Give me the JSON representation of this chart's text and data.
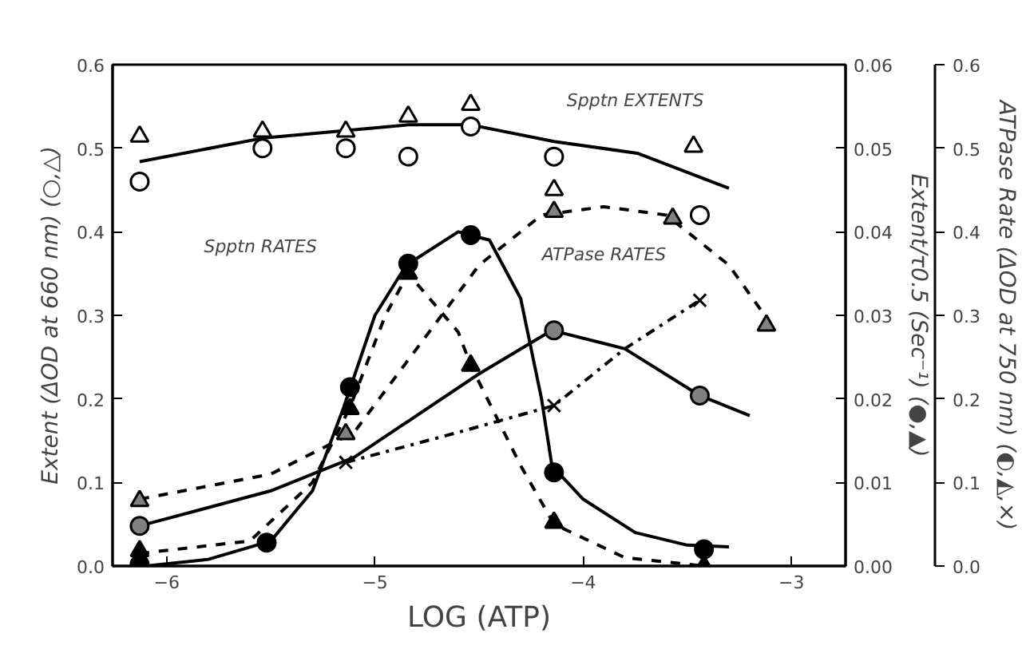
{
  "chart_data": {
    "type": "scatter",
    "xlabel": "LOG (ATP)",
    "ylabel": "Extent (ΔOD at 660 nm) (○,△)",
    "y2label": "Extent/τ0.5 (Sec⁻¹) (●,▲)",
    "y3label": "ATPase Rate (ΔOD at 750 nm) (◐,◭,×)",
    "xlim": [
      -6.26,
      -2.74
    ],
    "xticks": [
      {
        "value": -6,
        "label": "−6"
      },
      {
        "value": -5,
        "label": "−5"
      },
      {
        "value": -4,
        "label": "−4"
      },
      {
        "value": -3,
        "label": "−3"
      }
    ],
    "ylim": [
      0,
      0.6
    ],
    "yticks": [
      {
        "value": 0,
        "label": "0.0"
      },
      0.1,
      0.2,
      0.3,
      0.4,
      0.5,
      0.6
    ],
    "y2lim": [
      0,
      0.06
    ],
    "y2ticks": [
      {
        "value": 0,
        "label": "0.00"
      },
      0.01,
      0.02,
      0.03,
      0.04,
      0.05,
      0.06
    ],
    "y3lim": [
      0,
      0.6
    ],
    "y3ticks": [
      {
        "value": 0,
        "label": "0.0"
      },
      0.1,
      0.2,
      0.3,
      0.4,
      0.5,
      0.6
    ],
    "grid": false,
    "annotations": [
      "Spptn EXTENTS",
      "Spptn RATES",
      "ATPase RATES"
    ],
    "series": [
      {
        "type": "line",
        "axis": "y",
        "color": "#000000",
        "line_style": "solid",
        "x": [
          -6.13,
          -5.54,
          -4.84,
          -4.54,
          -4.14,
          -3.74,
          -3.3
        ],
        "values": [
          0.484,
          0.512,
          0.528,
          0.528,
          0.508,
          0.494,
          0.452
        ]
      },
      {
        "axis": "y",
        "color": "#ffffff",
        "marker": "circle",
        "x": [
          -6.13,
          -5.54,
          -5.14,
          -4.84,
          -4.54,
          -4.14,
          -3.44
        ],
        "values": [
          0.46,
          0.5,
          0.5,
          0.49,
          0.526,
          0.49,
          0.42
        ]
      },
      {
        "axis": "y",
        "color": "#ffffff",
        "marker": "triangle",
        "x": [
          -6.13,
          -5.54,
          -5.14,
          -4.84,
          -4.54,
          -4.14,
          -3.47
        ],
        "values": [
          0.514,
          0.52,
          0.52,
          0.538,
          0.552,
          0.45,
          0.502
        ]
      },
      {
        "type": "line",
        "axis": "y2",
        "color": "#000000",
        "line_style": "solid",
        "x": [
          -6.1,
          -5.8,
          -5.5,
          -5.3,
          -5.15,
          -5.0,
          -4.85,
          -4.6,
          -4.45,
          -4.3,
          -4.2,
          -4.15,
          -4.0,
          -3.75,
          -3.5,
          -3.3
        ],
        "values": [
          0.0,
          0.0008,
          0.003,
          0.009,
          0.019,
          0.03,
          0.036,
          0.04,
          0.039,
          0.032,
          0.02,
          0.012,
          0.008,
          0.004,
          0.0025,
          0.0023
        ]
      },
      {
        "axis": "y2",
        "color": "#000000",
        "marker": "circle",
        "x": [
          -6.13,
          -5.52,
          -5.12,
          -4.84,
          -4.54,
          -4.14,
          -3.42
        ],
        "values": [
          0.0002,
          0.0028,
          0.0214,
          0.0362,
          0.0396,
          0.0112,
          0.002
        ]
      },
      {
        "type": "line",
        "axis": "y2",
        "color": "#000000",
        "line_style": "dashed",
        "x": [
          -6.13,
          -5.6,
          -5.3,
          -5.12,
          -4.95,
          -4.84,
          -4.6,
          -4.54,
          -4.3,
          -4.14,
          -3.8,
          -3.42
        ],
        "values": [
          0.0015,
          0.003,
          0.01,
          0.019,
          0.03,
          0.035,
          0.028,
          0.024,
          0.012,
          0.005,
          0.001,
          0.0
        ]
      },
      {
        "axis": "y2",
        "color": "#000000",
        "marker": "triangle",
        "x": [
          -6.13,
          -5.12,
          -4.84,
          -4.54,
          -4.14,
          -3.42
        ],
        "values": [
          0.0018,
          0.0188,
          0.035,
          0.024,
          0.0052,
          0.0
        ]
      },
      {
        "type": "line",
        "axis": "y3",
        "color": "#000000",
        "line_style": "solid",
        "x": [
          -6.1,
          -5.5,
          -5.1,
          -4.5,
          -4.15,
          -3.8,
          -3.44,
          -3.2
        ],
        "values": [
          0.05,
          0.09,
          0.13,
          0.23,
          0.282,
          0.26,
          0.204,
          0.18
        ]
      },
      {
        "axis": "y3",
        "color": "#808080",
        "marker": "circle",
        "x": [
          -6.13,
          -4.14,
          -3.44
        ],
        "values": [
          0.048,
          0.282,
          0.204
        ]
      },
      {
        "type": "line",
        "axis": "y3",
        "color": "#000000",
        "line_style": "dashed",
        "x": [
          -6.13,
          -5.5,
          -5.1,
          -4.8,
          -4.5,
          -4.2,
          -3.9,
          -3.6,
          -3.3,
          -3.1
        ],
        "values": [
          0.08,
          0.11,
          0.16,
          0.26,
          0.36,
          0.42,
          0.43,
          0.42,
          0.36,
          0.29
        ]
      },
      {
        "axis": "y3",
        "color": "#808080",
        "marker": "triangle",
        "x": [
          -6.13,
          -5.14,
          -4.14,
          -3.57,
          -3.12
        ],
        "values": [
          0.078,
          0.158,
          0.424,
          0.416,
          0.288
        ]
      },
      {
        "type": "line",
        "axis": "y3",
        "color": "#000000",
        "line_style": "dashdot",
        "x": [
          -5.14,
          -4.6,
          -4.14,
          -3.8,
          -3.44
        ],
        "values": [
          0.124,
          0.16,
          0.192,
          0.26,
          0.318
        ]
      },
      {
        "axis": "y3",
        "color": "#000000",
        "marker": "cross",
        "x": [
          -5.14,
          -4.14,
          -3.44
        ],
        "values": [
          0.124,
          0.192,
          0.318
        ]
      }
    ]
  }
}
